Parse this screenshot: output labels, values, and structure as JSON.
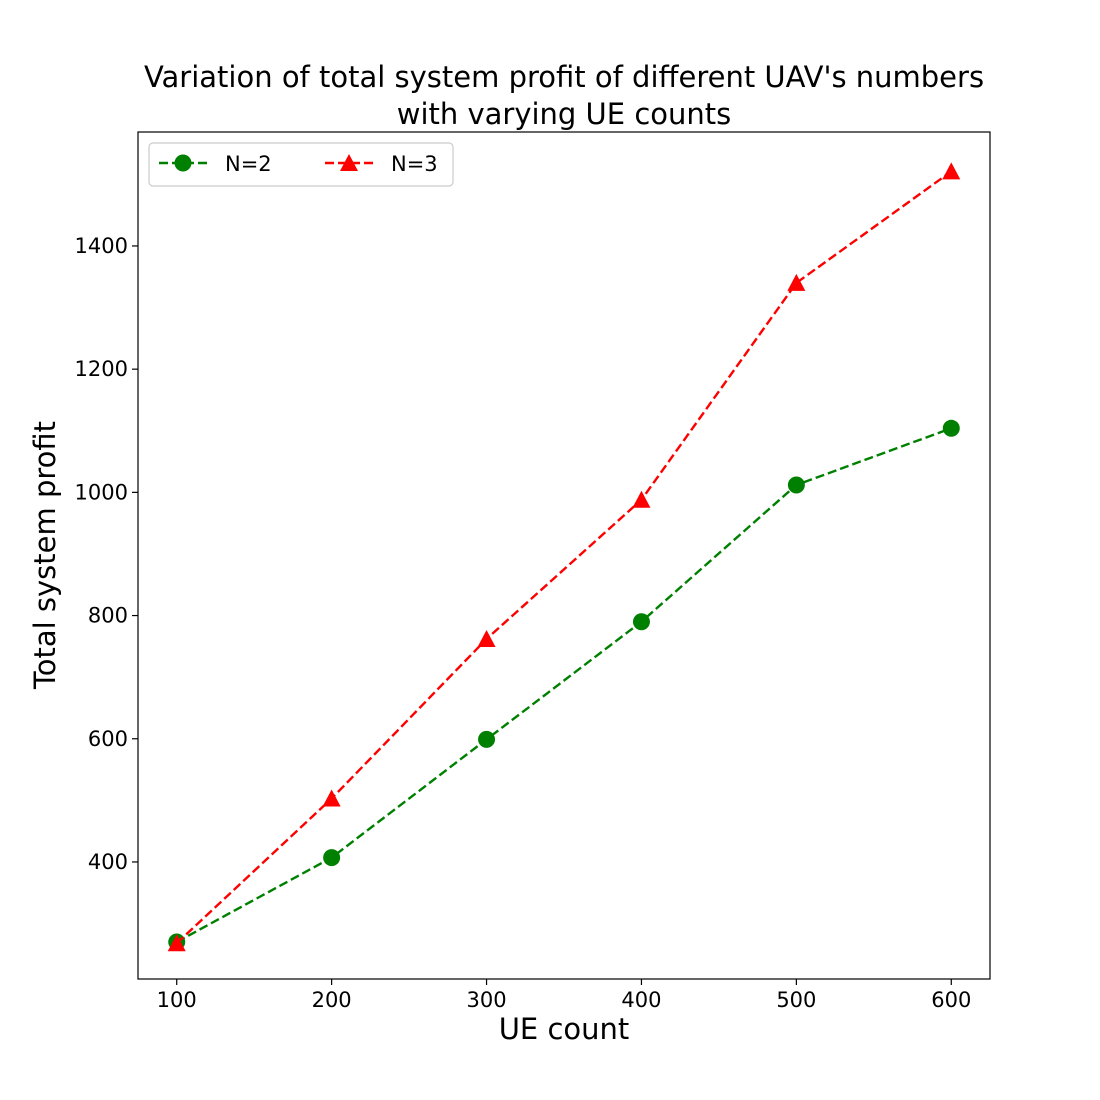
{
  "chart_data": {
    "type": "line",
    "title_line1": "Variation of total system profit of different UAV's numbers",
    "title_line2": "with varying UE counts",
    "xlabel": "UE count",
    "ylabel": "Total system profit",
    "x": [
      100,
      200,
      300,
      400,
      500,
      600
    ],
    "xlim": [
      75,
      625
    ],
    "ylim": [
      210,
      1585
    ],
    "xticks": [
      100,
      200,
      300,
      400,
      500,
      600
    ],
    "yticks": [
      400,
      600,
      800,
      1000,
      1200,
      1400
    ],
    "grid": false,
    "legend_position": "top-left",
    "series": [
      {
        "name": "N=2",
        "values": [
          270,
          407,
          599,
          790,
          1012,
          1104
        ],
        "color": "#008000",
        "marker": "circle",
        "linestyle": "dashed"
      },
      {
        "name": "N=3",
        "values": [
          268,
          503,
          762,
          988,
          1340,
          1521
        ],
        "color": "#ff0000",
        "marker": "triangle",
        "linestyle": "dashed"
      }
    ]
  }
}
